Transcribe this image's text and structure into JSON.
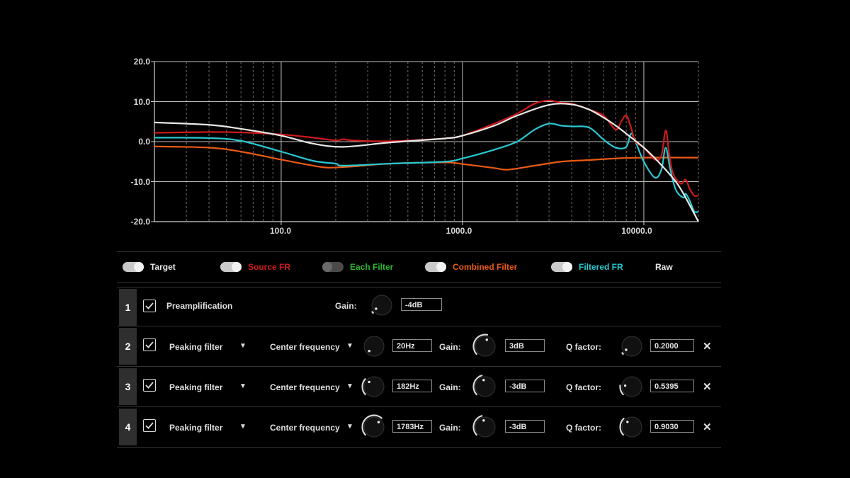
{
  "chart_data": {
    "type": "line",
    "xscale": "log",
    "xlim": [
      20,
      20000
    ],
    "ylim": [
      -20,
      20
    ],
    "y_ticks": [
      "20.0",
      "10.0",
      "0.0",
      "-10.0",
      "-20.0"
    ],
    "y_tick_values": [
      20,
      10,
      0,
      -10,
      -20
    ],
    "x_ticks": [
      "100.0",
      "1000.0",
      "10000.0"
    ],
    "x_tick_values": [
      100,
      1000,
      10000
    ],
    "grid": true,
    "series": [
      {
        "name": "Target",
        "color": "#e8e8e8",
        "x": [
          20,
          40,
          60,
          100,
          150,
          220,
          400,
          800,
          1000,
          1500,
          2000,
          3000,
          4000,
          5000,
          6000,
          7000,
          8000,
          10000,
          12000,
          15000,
          17000,
          20000
        ],
        "y": [
          4.8,
          4.2,
          3.2,
          1.5,
          -0.5,
          -1.3,
          -0.2,
          0.8,
          1.5,
          4.0,
          6.5,
          9.2,
          9.3,
          8.0,
          6.0,
          4.0,
          2.0,
          -1.5,
          -5.0,
          -10.0,
          -14.0,
          -20.0
        ]
      },
      {
        "name": "Source FR",
        "color": "#d11a1a",
        "x": [
          20,
          40,
          60,
          100,
          150,
          200,
          220,
          250,
          400,
          800,
          1000,
          1500,
          2000,
          2500,
          3000,
          3500,
          4000,
          5000,
          6000,
          7000,
          7500,
          8000,
          8500,
          9000,
          10000,
          11500,
          12500,
          13200,
          13800,
          14500,
          16000,
          17000,
          18000,
          19000,
          20000
        ],
        "y": [
          2.2,
          2.4,
          2.3,
          1.8,
          1.0,
          0.3,
          0.6,
          0.3,
          0.1,
          0.8,
          1.5,
          4.5,
          7.0,
          9.5,
          10.3,
          9.7,
          9.5,
          8.0,
          6.5,
          3.0,
          5.0,
          6.5,
          3.5,
          0.0,
          -1.5,
          -4.5,
          -3.5,
          2.8,
          -3.0,
          -8.0,
          -10.5,
          -9.5,
          -12.0,
          -13.5,
          -13.5
        ]
      },
      {
        "name": "Combined Filter",
        "color": "#ea5a14",
        "x": [
          20,
          40,
          60,
          100,
          150,
          182,
          250,
          400,
          800,
          1000,
          1500,
          1783,
          2500,
          3500,
          5000,
          7000,
          10000,
          20000
        ],
        "y": [
          -1.2,
          -1.5,
          -2.5,
          -4.5,
          -6.0,
          -6.5,
          -6.2,
          -5.5,
          -5.2,
          -5.6,
          -6.6,
          -7.0,
          -6.0,
          -5.0,
          -4.6,
          -4.2,
          -4.0,
          -4.0
        ]
      },
      {
        "name": "Filtered FR",
        "color": "#28c8d2",
        "x": [
          20,
          40,
          60,
          100,
          150,
          200,
          220,
          400,
          800,
          1000,
          1500,
          2000,
          2500,
          3000,
          3500,
          4000,
          5000,
          6000,
          7000,
          8000,
          8500,
          9000,
          10000,
          11500,
          12500,
          13200,
          14000,
          15000,
          16500,
          17000,
          18000,
          19000,
          20000
        ],
        "y": [
          1.0,
          0.9,
          0.2,
          -2.5,
          -4.8,
          -5.5,
          -6.0,
          -5.5,
          -5.0,
          -4.2,
          -2.0,
          0.0,
          3.0,
          4.5,
          4.0,
          3.8,
          3.5,
          0.5,
          -1.5,
          -1.3,
          2.0,
          0.0,
          -5.0,
          -9.0,
          -7.0,
          -1.5,
          -7.0,
          -12.0,
          -14.0,
          -13.0,
          -15.0,
          -17.5,
          -17.5
        ]
      }
    ]
  },
  "legend": [
    {
      "label": "Target",
      "state": "on",
      "color": "#e8e8e8"
    },
    {
      "label": "Source FR",
      "state": "on",
      "color": "#d11a1a"
    },
    {
      "label": "Each Filter",
      "state": "off",
      "color": "#2fb52f"
    },
    {
      "label": "Combined Filter",
      "state": "on",
      "color": "#ea5a14"
    },
    {
      "label": "Filtered FR",
      "state": "on",
      "color": "#28c8d2"
    },
    {
      "label": "Raw",
      "color": "#e8e8e8"
    }
  ],
  "preamp": {
    "num": "1",
    "label": "Preamplification",
    "gain_label": "Gain:",
    "gain_value": "-4dB"
  },
  "filters": [
    {
      "num": "2",
      "type": "Peaking filter",
      "freq_label": "Center frequency",
      "freq": "20Hz",
      "gain_label": "Gain:",
      "gain": "3dB",
      "q_label": "Q factor:",
      "q": "0.2000"
    },
    {
      "num": "3",
      "type": "Peaking filter",
      "freq_label": "Center frequency",
      "freq": "182Hz",
      "gain_label": "Gain:",
      "gain": "-3dB",
      "q_label": "Q factor:",
      "q": "0.5395"
    },
    {
      "num": "4",
      "type": "Peaking filter",
      "freq_label": "Center frequency",
      "freq": "1783Hz",
      "gain_label": "Gain:",
      "gain": "-3dB",
      "q_label": "Q factor:",
      "q": "0.9030"
    }
  ],
  "icons": {
    "dropdown": "▼",
    "remove": "✕"
  }
}
